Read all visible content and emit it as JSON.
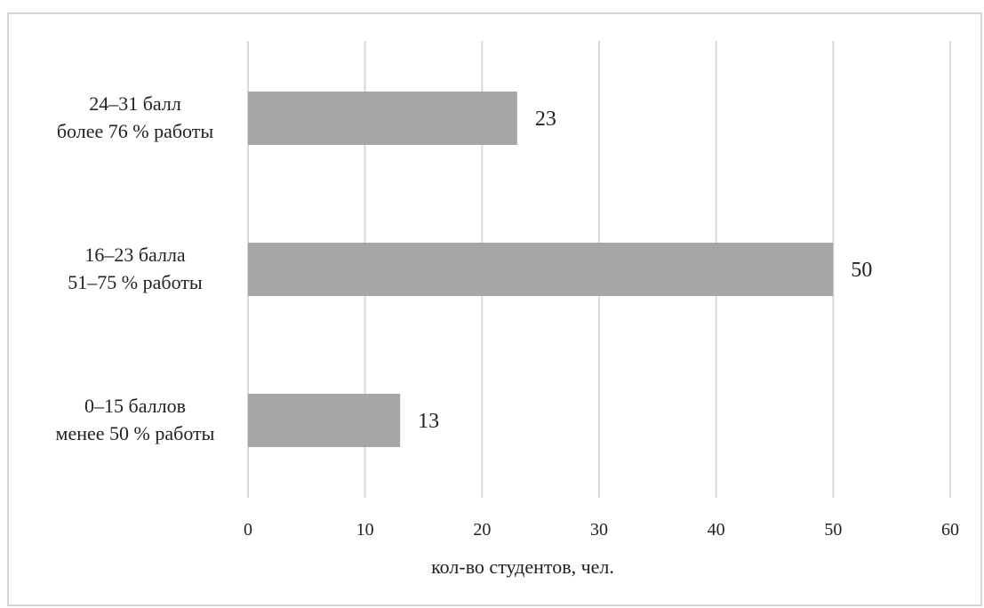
{
  "chart_data": {
    "type": "bar",
    "orientation": "horizontal",
    "categories": [
      [
        "24–31 балл",
        "более 76 % работы"
      ],
      [
        "16–23 балла",
        "51–75 % работы"
      ],
      [
        "0–15 баллов",
        "менее 50 % работы"
      ]
    ],
    "values": [
      23,
      50,
      13
    ],
    "xlabel": "кол-во студентов, чел.",
    "xlim": [
      0,
      60
    ],
    "xticks": [
      0,
      10,
      20,
      30,
      40,
      50,
      60
    ],
    "grid": true,
    "data_labels": true,
    "colors": {
      "bar": "#a6a6a6",
      "grid": "#d9d9d9",
      "border": "#d6d6d6",
      "text": "#222222"
    }
  }
}
